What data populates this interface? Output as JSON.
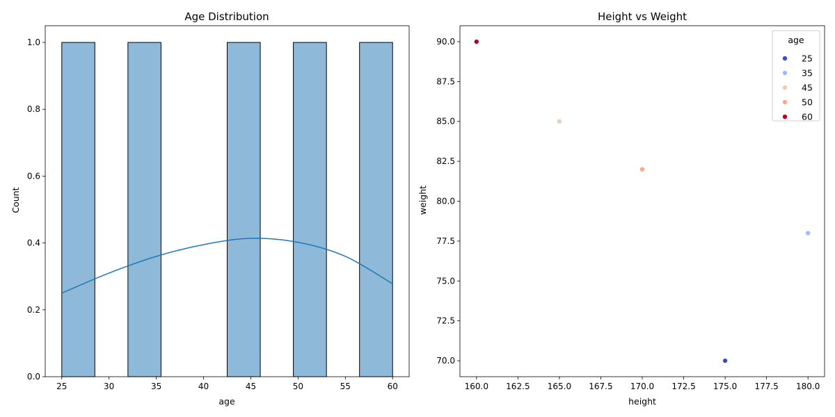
{
  "chart_data": [
    {
      "type": "bar",
      "title": "Age Distribution",
      "xlabel": "age",
      "ylabel": "Count",
      "xlim": [
        23.25,
        61.75
      ],
      "ylim": [
        0,
        1.05
      ],
      "x_ticks": [
        25,
        30,
        35,
        40,
        45,
        50,
        55,
        60
      ],
      "y_ticks": [
        "0.0",
        "0.2",
        "0.4",
        "0.6",
        "0.8",
        "1.0"
      ],
      "bin_edges": [
        25,
        28.5,
        32,
        35.5,
        39,
        42.5,
        46,
        49.5,
        53,
        56.5,
        60
      ],
      "counts": [
        1,
        0,
        1,
        0,
        0,
        1,
        0,
        1,
        0,
        1
      ],
      "bar_color": "#8fb9d9",
      "kde_color": "#1f77b4",
      "kde": {
        "x": [
          25,
          30,
          35,
          40,
          45,
          50,
          55,
          60
        ],
        "y": [
          0.25,
          0.31,
          0.36,
          0.395,
          0.414,
          0.402,
          0.36,
          0.278
        ]
      }
    },
    {
      "type": "scatter",
      "title": "Height vs Weight",
      "xlabel": "height",
      "ylabel": "weight",
      "xlim": [
        159,
        181
      ],
      "ylim": [
        69,
        91
      ],
      "x_ticks": [
        "160.0",
        "162.5",
        "165.0",
        "167.5",
        "170.0",
        "172.5",
        "175.0",
        "177.5",
        "180.0"
      ],
      "y_ticks": [
        "70.0",
        "72.5",
        "75.0",
        "77.5",
        "80.0",
        "82.5",
        "85.0",
        "87.5",
        "90.0"
      ],
      "points": [
        {
          "x": 175,
          "y": 70,
          "age": 25
        },
        {
          "x": 180,
          "y": 78,
          "age": 35
        },
        {
          "x": 165,
          "y": 85,
          "age": 45
        },
        {
          "x": 170,
          "y": 82,
          "age": 50
        },
        {
          "x": 160,
          "y": 90,
          "age": 60
        }
      ],
      "legend": {
        "title": "age",
        "placement": "top-right",
        "entries": [
          {
            "label": "25",
            "color": "#3b4cc0"
          },
          {
            "label": "35",
            "color": "#9bbcff"
          },
          {
            "label": "45",
            "color": "#f2cbb7"
          },
          {
            "label": "50",
            "color": "#f7a889"
          },
          {
            "label": "60",
            "color": "#b40426"
          }
        ]
      }
    }
  ]
}
